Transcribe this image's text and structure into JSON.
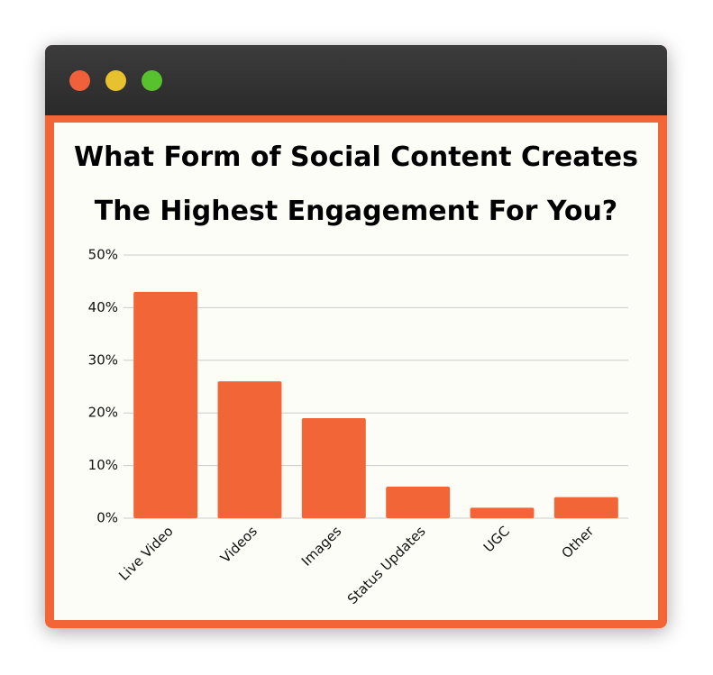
{
  "chart_data": {
    "type": "bar",
    "title": "What Form of Social Content Creates The Highest Engagement For You?",
    "categories": [
      "Live Video",
      "Videos",
      "Images",
      "Status Updates",
      "UGC",
      "Other"
    ],
    "values": [
      43,
      26,
      19,
      6,
      2,
      4
    ],
    "color": "#f26536",
    "ylim": [
      0,
      50
    ],
    "yticks": [
      {
        "value": 0,
        "label": "0%"
      },
      {
        "value": 10,
        "label": "10%"
      },
      {
        "value": 20,
        "label": "20%"
      },
      {
        "value": 30,
        "label": "30%"
      },
      {
        "value": 40,
        "label": "40%"
      },
      {
        "value": 50,
        "label": "50%"
      }
    ],
    "grid": true
  }
}
